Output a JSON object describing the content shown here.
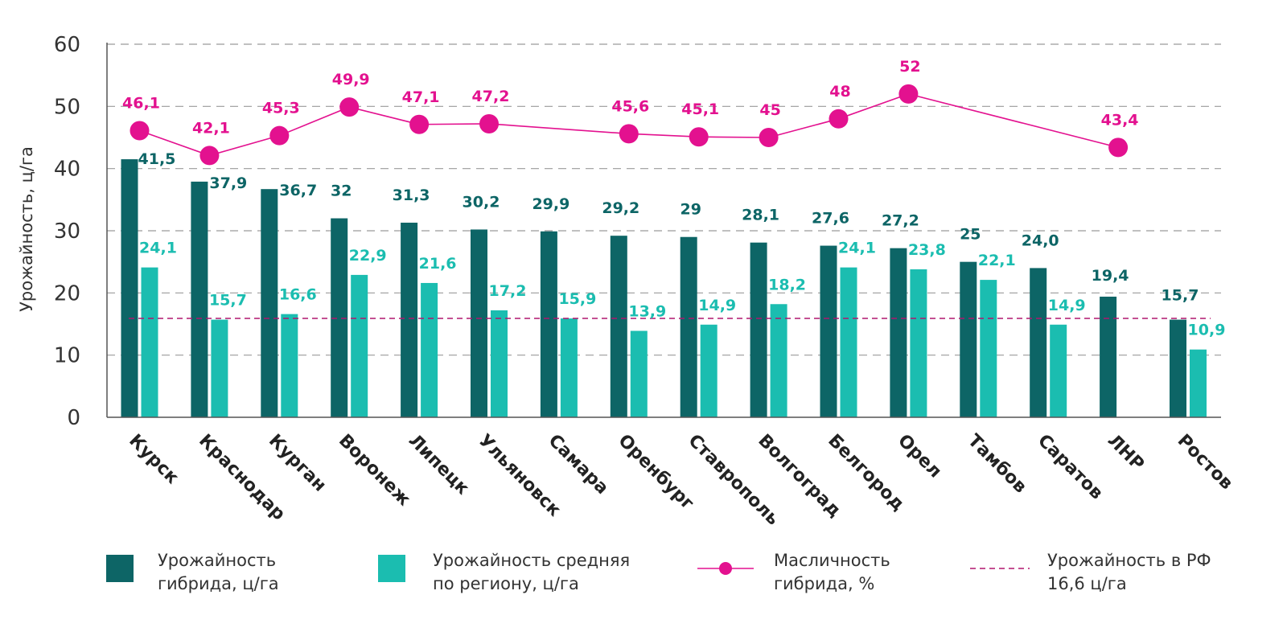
{
  "chart_data": {
    "type": "bar",
    "ylabel": "Урожайность, ц/га",
    "ylim": [
      0,
      60
    ],
    "yticks": [
      "0",
      "10",
      "20",
      "30",
      "40",
      "50",
      "60"
    ],
    "grid": true,
    "legend_position": "bottom",
    "categories": [
      "Курск",
      "Краснодар",
      "Курган",
      "Воронеж",
      "Липецк",
      "Ульяновск",
      "Самара",
      "Оренбург",
      "Ставрополь",
      "Волгоград",
      "Белгород",
      "Орел",
      "Тамбов",
      "Саратов",
      "ЛНР",
      "Ростов"
    ],
    "series": [
      {
        "name_lines": [
          "Урожайность",
          "гибрида, ц/га"
        ],
        "type": "bar",
        "color": "#0d6566",
        "values": [
          41.5,
          37.9,
          36.7,
          32,
          31.3,
          30.2,
          29.9,
          29.2,
          29,
          28.1,
          27.6,
          27.2,
          25,
          24.0,
          19.4,
          15.7
        ],
        "labels": [
          "41,5",
          "37,9",
          "36,7",
          "32",
          "31,3",
          "30,2",
          "29,9",
          "29,2",
          "29",
          "28,1",
          "27,6",
          "27,2",
          "25",
          "24,0",
          "19,4",
          "15,7"
        ]
      },
      {
        "name_lines": [
          "Урожайность средняя",
          "по региону, ц/га"
        ],
        "type": "bar",
        "color": "#1bbdb0",
        "values": [
          24.1,
          15.7,
          16.6,
          22.9,
          21.6,
          17.2,
          15.9,
          13.9,
          14.9,
          18.2,
          24.1,
          23.8,
          22.1,
          14.9,
          null,
          10.9
        ],
        "labels": [
          "24,1",
          "15,7",
          "16,6",
          "22,9",
          "21,6",
          "17,2",
          "15,9",
          "13,9",
          "14,9",
          "18,2",
          "24,1",
          "23,8",
          "22,1",
          "14,9",
          "",
          "10,9"
        ]
      },
      {
        "name_lines": [
          "Масличность",
          "гибрида, %"
        ],
        "type": "line",
        "color": "#e3118f",
        "values": [
          46.1,
          42.1,
          45.3,
          49.9,
          47.1,
          47.2,
          null,
          45.6,
          45.1,
          45,
          48,
          52,
          null,
          null,
          43.4,
          null
        ],
        "labels": [
          "46,1",
          "42,1",
          "45,3",
          "49,9",
          "47,1",
          "47,2",
          "",
          "45,6",
          "45,1",
          "45",
          "48",
          "52",
          "",
          "",
          "43,4",
          ""
        ]
      }
    ],
    "reference_line": {
      "name_lines": [
        "Урожайность в РФ",
        "16,6 ц/га"
      ],
      "value": 16.6,
      "color": "#b0176f",
      "style": "dashed"
    }
  }
}
